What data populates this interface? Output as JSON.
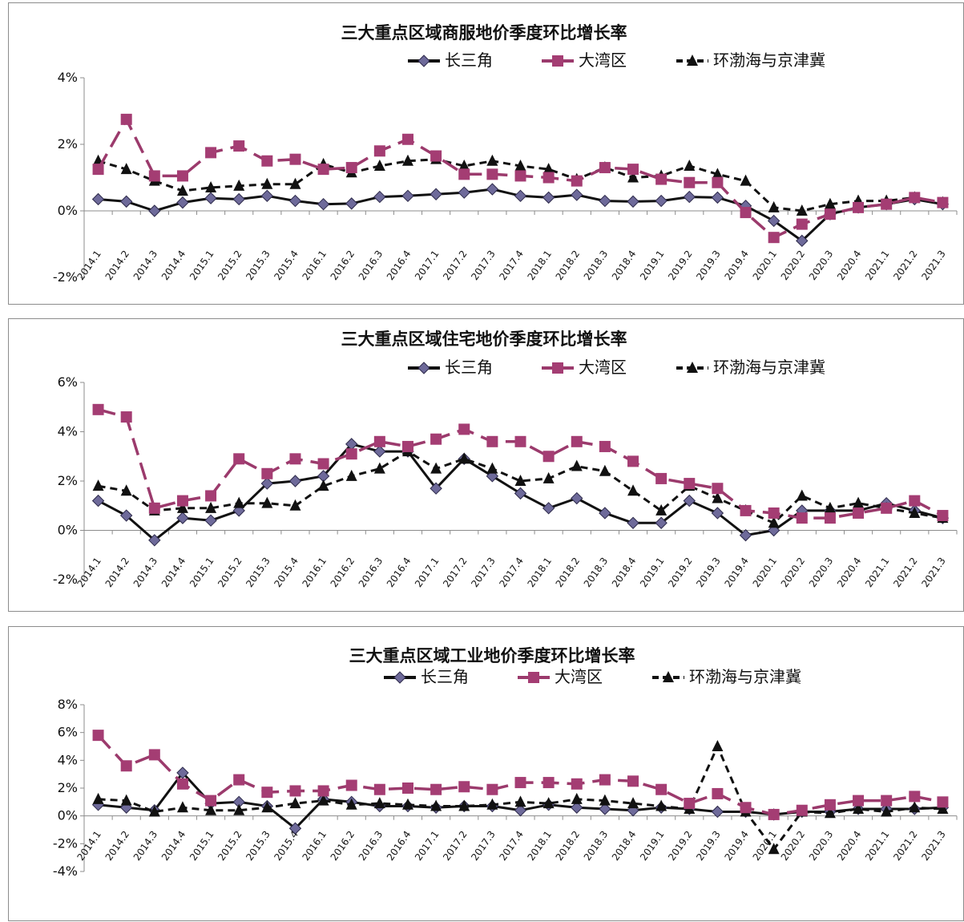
{
  "legend": [
    "长三角",
    "大湾区",
    "环渤海与京津冀"
  ],
  "series_colors": [
    "#111111",
    "#9b3a6c",
    "#111111"
  ],
  "quarters": [
    "2014.1",
    "2014.2",
    "2014.3",
    "2014.4",
    "2015.1",
    "2015.2",
    "2015.3",
    "2015.4",
    "2016.1",
    "2016.2",
    "2016.3",
    "2016.4",
    "2017.1",
    "2017.2",
    "2017.3",
    "2017.4",
    "2018.1",
    "2018.2",
    "2018.3",
    "2018.4",
    "2019.1",
    "2019.2",
    "2019.3",
    "2019.4",
    "2020.1",
    "2020.2",
    "2020.3",
    "2020.4",
    "2021.1",
    "2021.2",
    "2021.3"
  ],
  "chart_data": [
    {
      "type": "line",
      "title": "三大重点区域商服地价季度环比增长率",
      "ylim": [
        -2,
        4
      ],
      "yticks": [
        "-2%",
        "0%",
        "2%",
        "4%"
      ],
      "series": [
        {
          "name": "长三角",
          "values": [
            0.35,
            0.28,
            0.0,
            0.25,
            0.38,
            0.35,
            0.45,
            0.3,
            0.2,
            0.22,
            0.42,
            0.45,
            0.5,
            0.55,
            0.65,
            0.45,
            0.4,
            0.48,
            0.3,
            0.28,
            0.3,
            0.42,
            0.4,
            0.15,
            -0.3,
            -0.9,
            -0.1,
            0.1,
            0.2,
            0.35,
            0.2
          ]
        },
        {
          "name": "大湾区",
          "values": [
            1.25,
            2.75,
            1.05,
            1.05,
            1.75,
            1.95,
            1.5,
            1.55,
            1.25,
            1.3,
            1.8,
            2.15,
            1.65,
            1.1,
            1.1,
            1.05,
            1.0,
            0.9,
            1.3,
            1.25,
            0.95,
            0.85,
            0.85,
            -0.05,
            -0.8,
            -0.4,
            -0.1,
            0.1,
            0.2,
            0.4,
            0.25
          ]
        },
        {
          "name": "环渤海与京津冀",
          "values": [
            1.5,
            1.25,
            0.9,
            0.6,
            0.7,
            0.75,
            0.8,
            0.8,
            1.4,
            1.15,
            1.35,
            1.5,
            1.55,
            1.35,
            1.5,
            1.35,
            1.25,
            0.95,
            1.3,
            1.0,
            1.05,
            1.35,
            1.1,
            0.9,
            0.1,
            0.0,
            0.2,
            0.3,
            0.3,
            0.4,
            0.25
          ]
        }
      ]
    },
    {
      "type": "line",
      "title": "三大重点区域住宅地价季度环比增长率",
      "ylim": [
        -2,
        6
      ],
      "yticks": [
        "-2%",
        "0%",
        "2%",
        "4%",
        "6%"
      ],
      "series": [
        {
          "name": "长三角",
          "values": [
            1.2,
            0.6,
            -0.4,
            0.5,
            0.4,
            0.8,
            1.9,
            2.0,
            2.2,
            3.5,
            3.2,
            3.2,
            1.7,
            2.9,
            2.2,
            1.5,
            0.9,
            1.3,
            0.7,
            0.3,
            0.3,
            1.2,
            0.7,
            -0.2,
            0.0,
            0.8,
            0.8,
            0.8,
            1.1,
            0.8,
            0.5
          ]
        },
        {
          "name": "大湾区",
          "values": [
            4.9,
            4.6,
            0.9,
            1.2,
            1.4,
            2.9,
            2.3,
            2.9,
            2.7,
            3.1,
            3.6,
            3.4,
            3.7,
            4.1,
            3.6,
            3.6,
            3.0,
            3.6,
            3.4,
            2.8,
            2.1,
            1.9,
            1.7,
            0.8,
            0.7,
            0.5,
            0.5,
            0.7,
            0.9,
            1.2,
            0.6
          ]
        },
        {
          "name": "环渤海与京津冀",
          "values": [
            1.8,
            1.6,
            0.8,
            0.9,
            0.9,
            1.1,
            1.1,
            1.0,
            1.8,
            2.2,
            2.5,
            3.2,
            2.5,
            2.9,
            2.5,
            2.0,
            2.1,
            2.6,
            2.4,
            1.6,
            0.8,
            1.8,
            1.3,
            0.8,
            0.3,
            1.4,
            0.9,
            1.1,
            0.9,
            0.7,
            0.5
          ]
        }
      ]
    },
    {
      "type": "line",
      "title": "三大重点区域工业地价季度环比增长率",
      "ylim": [
        -4,
        8
      ],
      "yticks": [
        "-4%",
        "-2%",
        "0%",
        "2%",
        "4%",
        "6%",
        "8%"
      ],
      "series": [
        {
          "name": "长三角",
          "values": [
            0.8,
            0.6,
            0.4,
            3.1,
            0.9,
            1.0,
            0.7,
            -0.9,
            1.2,
            1.0,
            0.7,
            0.7,
            0.6,
            0.7,
            0.7,
            0.4,
            0.8,
            0.6,
            0.5,
            0.4,
            0.6,
            0.5,
            0.3,
            0.3,
            0.1,
            0.3,
            0.3,
            0.5,
            0.5,
            0.5,
            0.6
          ]
        },
        {
          "name": "大湾区",
          "values": [
            5.8,
            3.6,
            4.4,
            2.3,
            1.1,
            2.6,
            1.7,
            1.8,
            1.8,
            2.2,
            1.9,
            2.0,
            1.9,
            2.1,
            1.9,
            2.4,
            2.4,
            2.3,
            2.6,
            2.5,
            1.9,
            0.9,
            1.6,
            0.6,
            0.1,
            0.4,
            0.8,
            1.1,
            1.1,
            1.4,
            1.0
          ]
        },
        {
          "name": "环渤海与京津冀",
          "values": [
            1.2,
            1.1,
            0.3,
            0.6,
            0.4,
            0.4,
            0.6,
            0.9,
            1.1,
            0.8,
            0.9,
            0.8,
            0.7,
            0.7,
            0.8,
            1.0,
            0.9,
            1.2,
            1.1,
            0.9,
            0.7,
            0.5,
            5.0,
            0.3,
            -2.4,
            0.3,
            0.2,
            0.5,
            0.3,
            0.6,
            0.5
          ]
        }
      ]
    }
  ]
}
